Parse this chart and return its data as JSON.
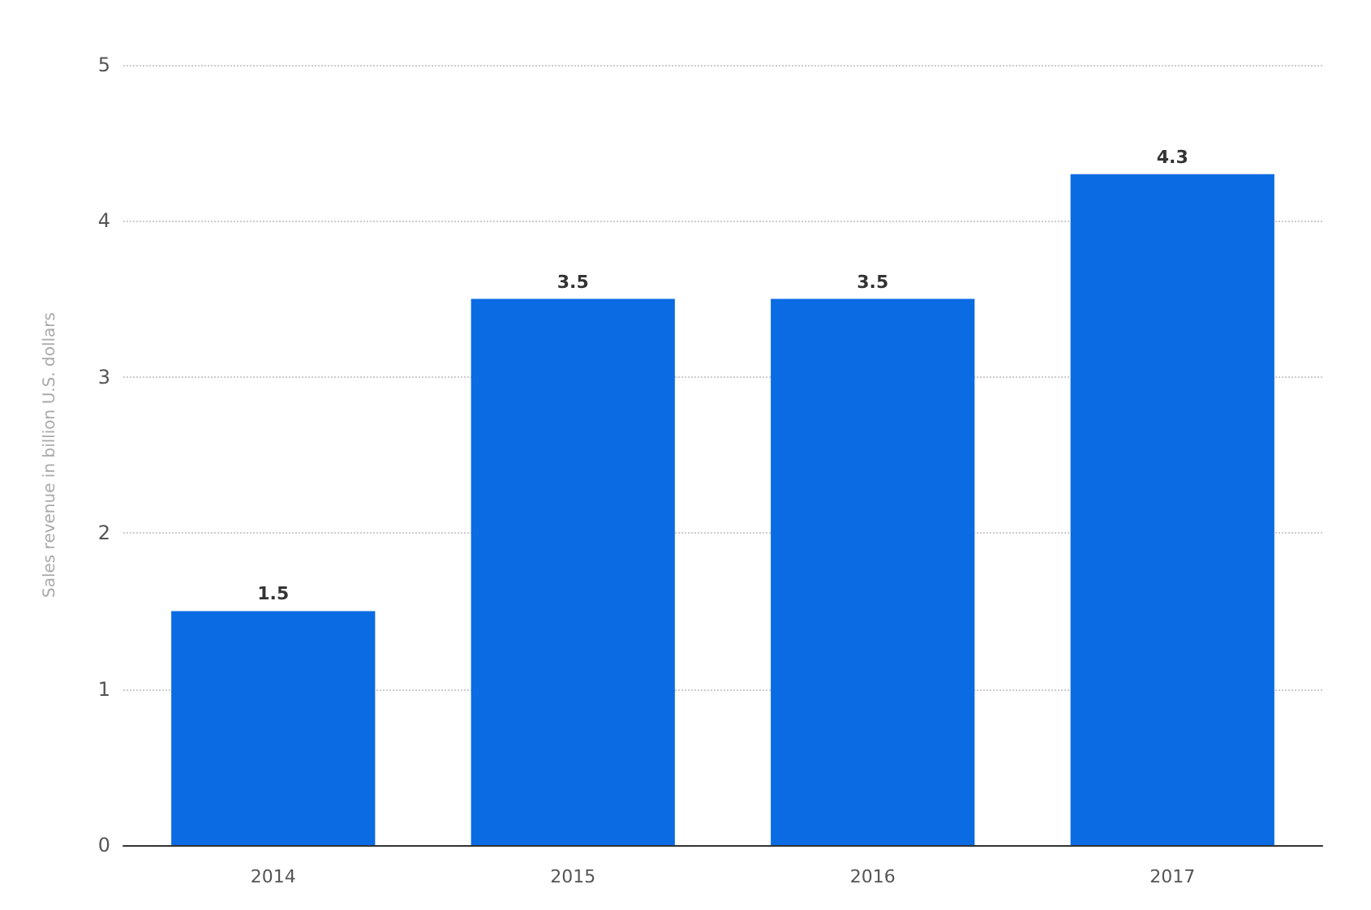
{
  "chart_data": {
    "type": "bar",
    "ylabel": "Sales revenue in billion U.S. dollars",
    "categories": [
      "2014",
      "2015",
      "2016",
      "2017"
    ],
    "values": [
      1.5,
      3.5,
      3.5,
      4.3
    ],
    "color": "#0a6be3",
    "ylim": [
      0,
      5
    ],
    "yticks": [
      0,
      1,
      2,
      3,
      4,
      5
    ],
    "grid": "y",
    "data_labels": true
  }
}
